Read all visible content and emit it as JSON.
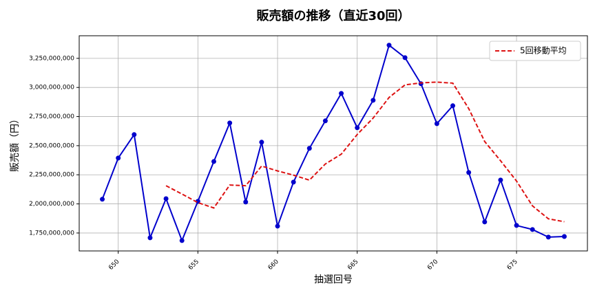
{
  "chart_data": {
    "type": "line",
    "title": "販売額の推移（直近30回）",
    "x_label": "抽選回号",
    "y_label": "販売額（円）",
    "x": [
      649,
      650,
      651,
      652,
      653,
      654,
      655,
      656,
      657,
      658,
      659,
      660,
      661,
      662,
      663,
      664,
      665,
      666,
      667,
      668,
      669,
      670,
      671,
      672,
      673,
      674,
      675,
      676,
      677,
      678
    ],
    "series": [
      {
        "color": "#0000cc",
        "marker": true,
        "dashed": false,
        "values": [
          2040000000,
          2394000000,
          2595000000,
          1709000000,
          2045000000,
          1685000000,
          2022000000,
          2364000000,
          2695000000,
          2016000000,
          2530000000,
          1809000000,
          2187000000,
          2477000000,
          2713000000,
          2949000000,
          2654000000,
          2890000000,
          3363000000,
          3256000000,
          3032000000,
          2689000000,
          2843000000,
          2270000000,
          1845000000,
          2205000000,
          1815000000,
          1780000000,
          1715000000,
          1720000000
        ]
      },
      {
        "name": "5回移動平均",
        "color": "#dd1111",
        "marker": false,
        "dashed": true,
        "values": [
          null,
          null,
          null,
          null,
          2156000000,
          2085000000,
          2011000000,
          1965000000,
          2162000000,
          2156000000,
          2325000000,
          2283000000,
          2247000000,
          2204000000,
          2343000000,
          2427000000,
          2596000000,
          2737000000,
          2914000000,
          3022000000,
          3039000000,
          3046000000,
          3037000000,
          2818000000,
          2536000000,
          2370000000,
          2196000000,
          1983000000,
          1872000000,
          1847000000
        ]
      }
    ],
    "xlim": [
      647.55,
      679.45
    ],
    "ylim": [
      1596000000,
      3444000000
    ],
    "xticks": [
      650,
      655,
      660,
      665,
      670,
      675
    ],
    "yticks": [
      {
        "value": 1750000000,
        "label": "1,750,000,000"
      },
      {
        "value": 2000000000,
        "label": "2,000,000,000"
      },
      {
        "value": 2250000000,
        "label": "2,250,000,000"
      },
      {
        "value": 2500000000,
        "label": "2,500,000,000"
      },
      {
        "value": 2750000000,
        "label": "2,750,000,000"
      },
      {
        "value": 3000000000,
        "label": "3,000,000,000"
      },
      {
        "value": 3250000000,
        "label": "3,250,000,000"
      }
    ],
    "grid": true,
    "legend": "upper right"
  }
}
